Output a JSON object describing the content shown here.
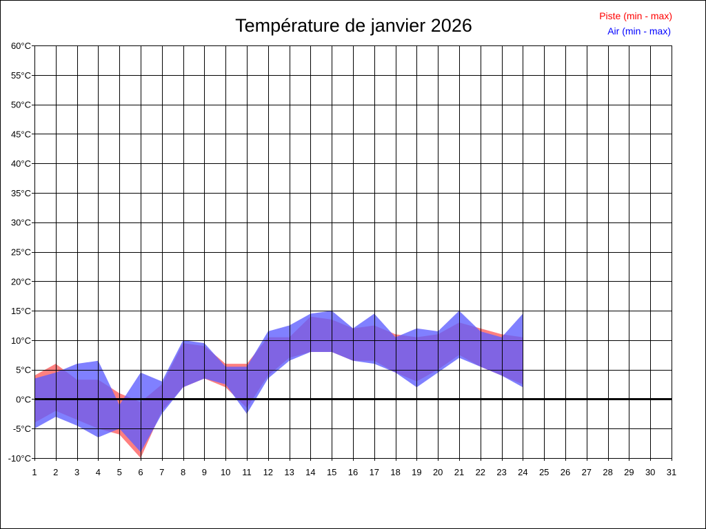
{
  "chart_data": {
    "type": "area",
    "title": "Température de janvier 2026",
    "xlabel": "",
    "ylabel": "",
    "x": [
      1,
      2,
      3,
      4,
      5,
      6,
      7,
      8,
      9,
      10,
      11,
      12,
      13,
      14,
      15,
      16,
      17,
      18,
      19,
      20,
      21,
      22,
      23,
      24
    ],
    "x_ticks": [
      1,
      2,
      3,
      4,
      5,
      6,
      7,
      8,
      9,
      10,
      11,
      12,
      13,
      14,
      15,
      16,
      17,
      18,
      19,
      20,
      21,
      22,
      23,
      24,
      25,
      26,
      27,
      28,
      29,
      30,
      31
    ],
    "xlim": [
      1,
      31
    ],
    "ylim": [
      -10,
      60
    ],
    "y_ticks": [
      -10,
      -5,
      0,
      5,
      10,
      15,
      20,
      25,
      30,
      35,
      40,
      45,
      50,
      55,
      60
    ],
    "y_unit": "°C",
    "grid": true,
    "legend_position": "top-right",
    "series": [
      {
        "name": "Piste (min - max)",
        "color": "#ff0000",
        "fill": "#ff5c5c",
        "min": [
          -4,
          -2,
          -3.5,
          -5,
          -6,
          -10,
          -2,
          2,
          3.5,
          2,
          -1.5,
          4,
          7,
          8,
          8,
          6.5,
          6.5,
          4.5,
          3,
          5,
          7.5,
          5.5,
          4,
          2.5
        ],
        "max": [
          4,
          6,
          3.3,
          3.3,
          1,
          -0.5,
          2.5,
          9.5,
          9,
          6,
          6,
          10.5,
          10.5,
          14,
          13.5,
          12,
          12.5,
          11,
          10.5,
          11,
          13,
          12,
          11,
          10.5
        ]
      },
      {
        "name": "Air (min - max)",
        "color": "#0000ff",
        "fill": "#5c5cff",
        "min": [
          -5,
          -3,
          -4.5,
          -6.5,
          -5,
          -9,
          -2.5,
          2,
          3.5,
          2.5,
          -2.5,
          3.5,
          6.5,
          8,
          8,
          6.5,
          6,
          4.5,
          2,
          4.5,
          7,
          5.5,
          4,
          2
        ],
        "max": [
          3.5,
          4.5,
          6,
          6.5,
          -1,
          4.5,
          3,
          10,
          9.5,
          5.5,
          5.5,
          11.5,
          12.5,
          14.5,
          15,
          12,
          14.5,
          10.5,
          12,
          11.5,
          15,
          11.5,
          10.5,
          14.5
        ]
      }
    ]
  }
}
